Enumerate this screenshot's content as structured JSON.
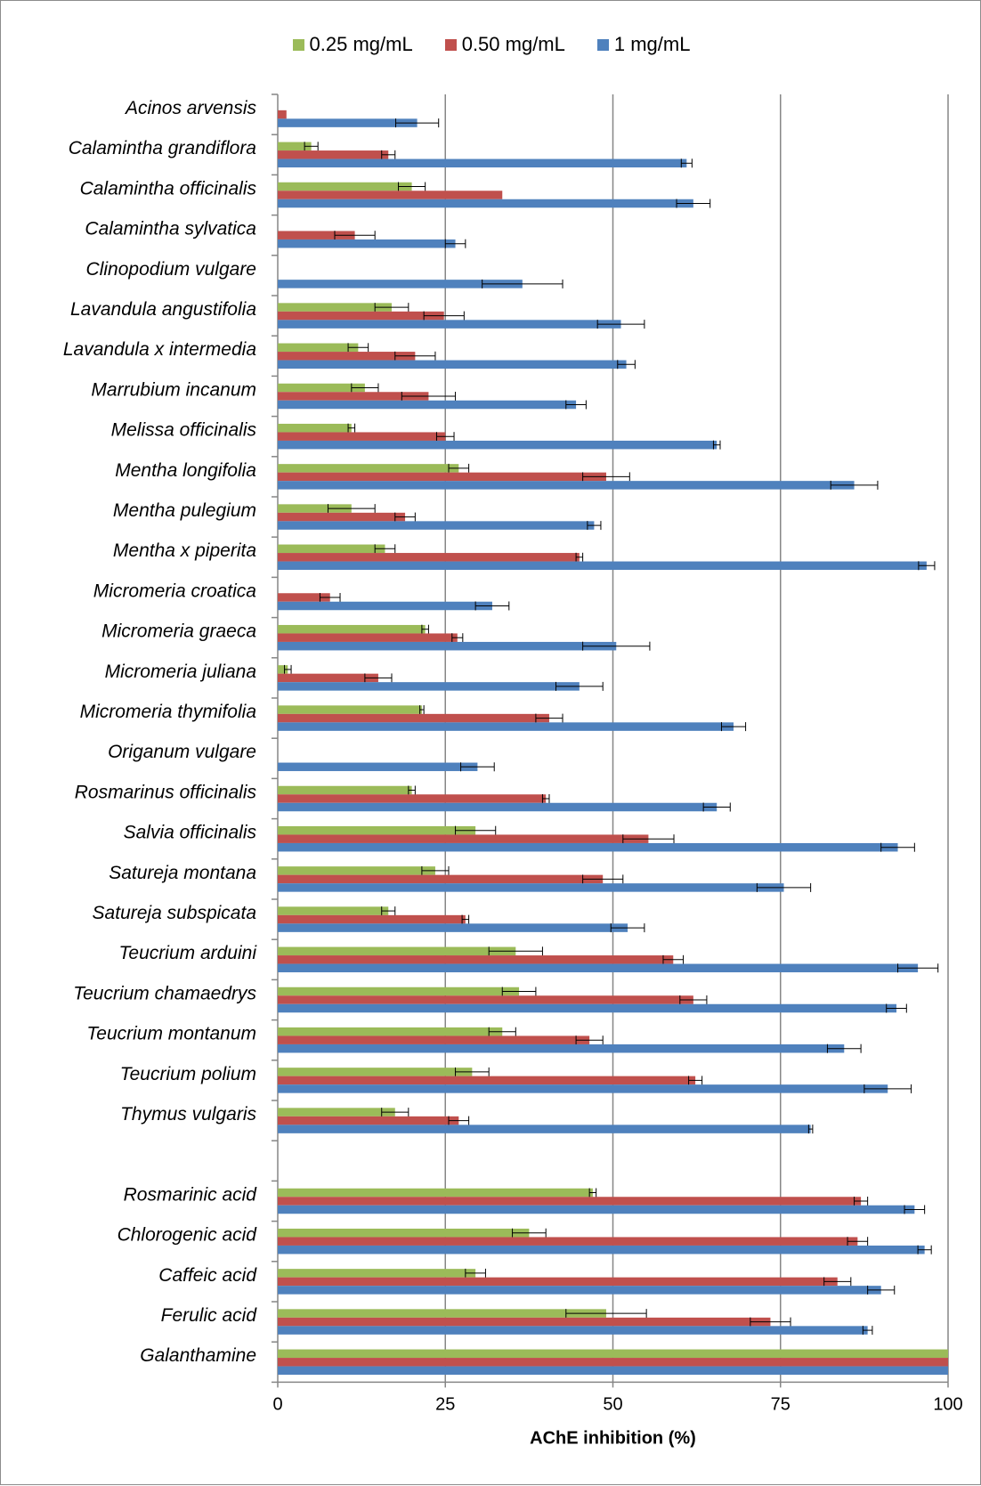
{
  "chart_data": {
    "type": "bar",
    "orientation": "horizontal",
    "xlabel": "AChE inhibition (%)",
    "xlim": [
      0,
      100
    ],
    "xticks": [
      "0",
      "25",
      "50",
      "75",
      "100"
    ],
    "grid": "vertical gridlines at 25, 50, 75, 100",
    "legend_position": "top-center",
    "categories": [
      "Acinos arvensis",
      "Calamintha grandiflora",
      "Calamintha officinalis",
      "Calamintha sylvatica",
      "Clinopodium vulgare",
      "Lavandula angustifolia",
      "Lavandula x intermedia",
      "Marrubium incanum",
      "Melissa officinalis",
      "Mentha longifolia",
      "Mentha pulegium",
      "Mentha x piperita",
      "Micromeria croatica",
      "Micromeria graeca",
      "Micromeria juliana",
      "Micromeria thymifolia",
      "Origanum vulgare",
      "Rosmarinus officinalis",
      "Salvia officinalis",
      "Satureja montana",
      "Satureja subspicata",
      "Teucrium arduini",
      "Teucrium chamaedrys",
      "Teucrium montanum",
      "Teucrium polium",
      "Thymus vulgaris",
      "",
      "Rosmarinic acid",
      "Chlorogenic acid",
      "Caffeic acid",
      "Ferulic acid",
      "Galanthamine"
    ],
    "series": [
      {
        "name": "0.25 mg/mL",
        "color": "#9bbb59",
        "values": [
          null,
          5,
          20,
          0,
          null,
          17,
          12,
          13,
          11,
          27,
          11,
          16,
          null,
          22,
          1.5,
          21.5,
          null,
          20,
          29.5,
          23.5,
          16.5,
          35.5,
          36,
          33.5,
          29,
          17.5,
          null,
          47,
          37.5,
          29.5,
          49,
          100
        ],
        "errors": [
          null,
          1,
          2,
          0,
          null,
          2.5,
          1.5,
          2,
          0.5,
          1.5,
          3.5,
          1.5,
          null,
          0.5,
          0.5,
          0.3,
          null,
          0.5,
          3,
          2,
          1,
          4,
          2.5,
          2,
          2.5,
          2,
          null,
          0.5,
          2.5,
          1.5,
          6,
          0
        ]
      },
      {
        "name": "0.50 mg/mL",
        "color": "#c0504d",
        "values": [
          1.3,
          16.5,
          33.5,
          11.5,
          null,
          24.8,
          20.5,
          22.5,
          25,
          49,
          19,
          45,
          7.8,
          26.8,
          15,
          40.5,
          null,
          40,
          55.3,
          48.5,
          28,
          59,
          62,
          46.5,
          62.3,
          27,
          null,
          87,
          86.5,
          83.5,
          73.5,
          100
        ],
        "errors": [
          0,
          1,
          0,
          3,
          null,
          3,
          3,
          4,
          1.3,
          3.5,
          1.5,
          0.5,
          1.5,
          0.8,
          2,
          2,
          null,
          0.5,
          3.8,
          3,
          0.5,
          1.5,
          2,
          2,
          1,
          1.5,
          null,
          1,
          1.5,
          2,
          3,
          0
        ]
      },
      {
        "name": "1 mg/mL",
        "color": "#4f81bd",
        "values": [
          20.8,
          61,
          62,
          26.5,
          36.5,
          51.2,
          52,
          44.5,
          65.5,
          86,
          47.2,
          96.8,
          32,
          50.5,
          45,
          68,
          29.8,
          65.5,
          92.5,
          75.5,
          52.2,
          95.5,
          92.3,
          84.5,
          91,
          79.5,
          null,
          95,
          96.5,
          90,
          88,
          100
        ],
        "errors": [
          3.2,
          0.8,
          2.5,
          1.5,
          6,
          3.5,
          1.3,
          1.5,
          0.5,
          3.5,
          1,
          1.2,
          2.5,
          5,
          3.5,
          1.8,
          2.5,
          2,
          2.5,
          4,
          2.5,
          3,
          1.5,
          2.5,
          3.5,
          0.3,
          null,
          1.5,
          1,
          2,
          0.7,
          0
        ]
      }
    ]
  }
}
